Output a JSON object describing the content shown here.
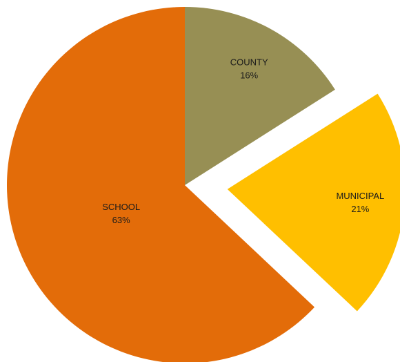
{
  "chart_data": {
    "type": "pie",
    "title": "",
    "exploded": "MUNICIPAL",
    "slices": [
      {
        "name": "COUNTY",
        "value": 16,
        "label": "16%",
        "color": "#978f54"
      },
      {
        "name": "MUNICIPAL",
        "value": 21,
        "label": "21%",
        "color": "#ffbf00"
      },
      {
        "name": "SCHOOL",
        "value": 63,
        "label": "63%",
        "color": "#e36c09"
      }
    ]
  }
}
